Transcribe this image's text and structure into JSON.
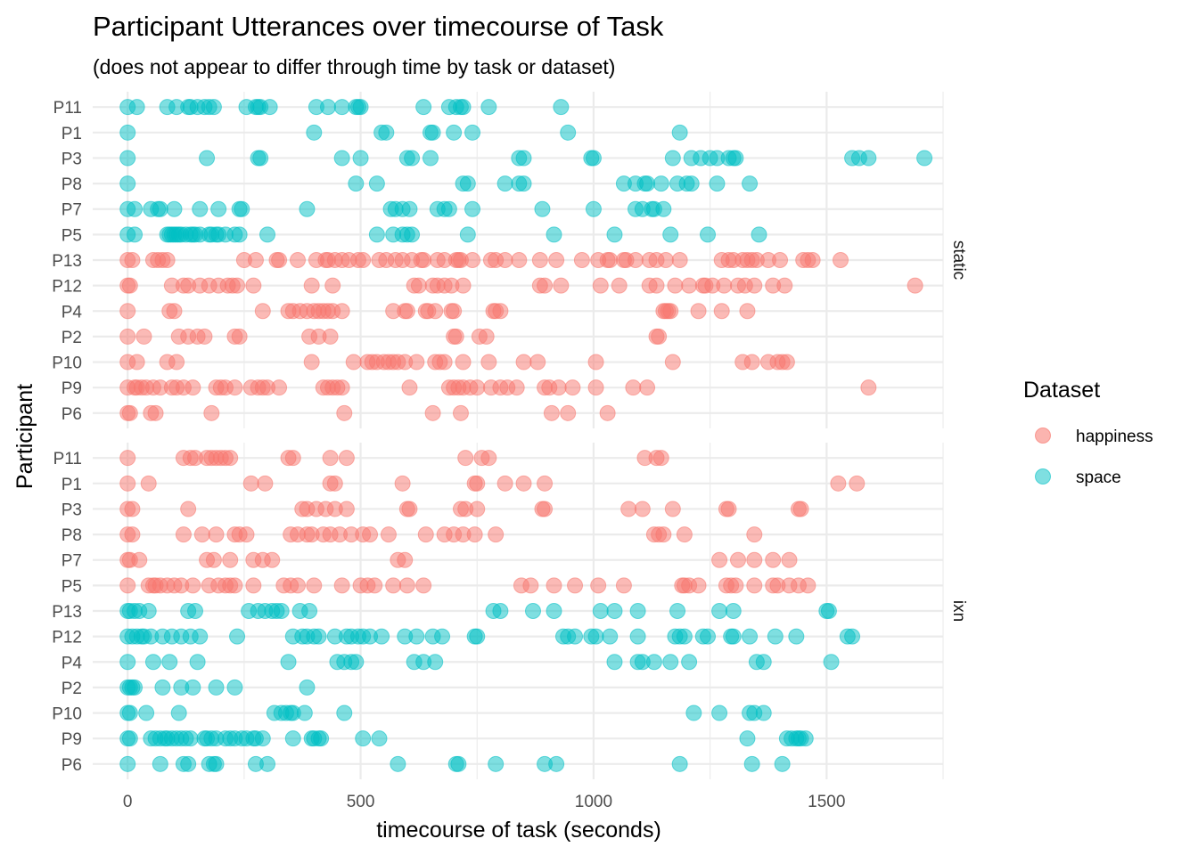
{
  "chart_data": {
    "type": "scatter",
    "title": "Participant Utterances over timecourse of Task",
    "subtitle": "(does not appear to differ through time by task or dataset)",
    "xlabel": "timecourse of task (seconds)",
    "ylabel": "Participant",
    "xlim": [
      -75,
      1750
    ],
    "x_ticks": [
      0,
      500,
      1000,
      1500
    ],
    "x_tick_labels": [
      "0",
      "500",
      "1000",
      "1500"
    ],
    "grid": true,
    "legend": {
      "title": "Dataset",
      "placement": "right",
      "entries": [
        {
          "name": "happiness",
          "color": "#F8766D"
        },
        {
          "name": "space",
          "color": "#00BFC4"
        }
      ]
    },
    "facets": [
      {
        "name": "static",
        "participants": [
          "P11",
          "P1",
          "P3",
          "P8",
          "P7",
          "P5",
          "P13",
          "P12",
          "P4",
          "P2",
          "P10",
          "P9",
          "P6"
        ],
        "rows": [
          {
            "participant": "P11",
            "dataset": "space",
            "x": [
              0,
              20,
              85,
              105,
              130,
              135,
              150,
              165,
              175,
              185,
              255,
              275,
              280,
              285,
              305,
              405,
              430,
              460,
              490,
              495,
              500,
              635,
              690,
              705,
              715,
              720,
              775,
              930
            ]
          },
          {
            "participant": "P1",
            "dataset": "space",
            "x": [
              0,
              400,
              545,
              555,
              650,
              655,
              700,
              740,
              945,
              1185
            ]
          },
          {
            "participant": "P3",
            "dataset": "space",
            "x": [
              0,
              170,
              280,
              285,
              460,
              500,
              600,
              610,
              650,
              840,
              850,
              995,
              1000,
              1170,
              1210,
              1230,
              1250,
              1265,
              1290,
              1300,
              1305,
              1555,
              1570,
              1590,
              1710
            ]
          },
          {
            "participant": "P8",
            "dataset": "space",
            "x": [
              0,
              490,
              535,
              720,
              730,
              810,
              840,
              850,
              1065,
              1090,
              1110,
              1115,
              1145,
              1180,
              1200,
              1210,
              1265,
              1335
            ]
          },
          {
            "participant": "P7",
            "dataset": "space",
            "x": [
              0,
              15,
              50,
              65,
              70,
              100,
              155,
              195,
              240,
              245,
              385,
              565,
              575,
              590,
              605,
              665,
              680,
              690,
              740,
              890,
              1000,
              1090,
              1105,
              1125,
              1130,
              1150
            ]
          },
          {
            "participant": "P5",
            "dataset": "space",
            "x": [
              0,
              15,
              85,
              90,
              95,
              100,
              105,
              110,
              115,
              125,
              135,
              140,
              145,
              155,
              175,
              180,
              190,
              195,
              210,
              230,
              240,
              300,
              535,
              570,
              590,
              600,
              610,
              730,
              915,
              1045,
              1165,
              1245,
              1355
            ]
          },
          {
            "participant": "P13",
            "dataset": "happiness",
            "x": [
              0,
              10,
              55,
              65,
              75,
              85,
              250,
              275,
              320,
              325,
              365,
              405,
              425,
              430,
              445,
              460,
              475,
              495,
              505,
              540,
              555,
              575,
              590,
              610,
              630,
              635,
              665,
              680,
              705,
              710,
              715,
              740,
              780,
              790,
              810,
              840,
              885,
              920,
              975,
              1010,
              1030,
              1035,
              1065,
              1070,
              1090,
              1120,
              1135,
              1155,
              1185,
              1275,
              1290,
              1300,
              1320,
              1330,
              1340,
              1350,
              1375,
              1400,
              1450,
              1460,
              1470,
              1530
            ]
          },
          {
            "participant": "P12",
            "dataset": "happiness",
            "x": [
              0,
              5,
              95,
              120,
              130,
              155,
              175,
              195,
              215,
              225,
              235,
              270,
              395,
              440,
              615,
              625,
              655,
              665,
              680,
              695,
              720,
              885,
              895,
              930,
              1015,
              1055,
              1120,
              1135,
              1175,
              1205,
              1235,
              1240,
              1255,
              1280,
              1310,
              1325,
              1345,
              1385,
              1410,
              1690
            ]
          },
          {
            "participant": "P4",
            "dataset": "happiness",
            "x": [
              0,
              90,
              100,
              290,
              345,
              355,
              370,
              385,
              400,
              410,
              420,
              430,
              440,
              460,
              570,
              595,
              600,
              640,
              645,
              660,
              695,
              700,
              785,
              790,
              800,
              1150,
              1155,
              1160,
              1165,
              1225,
              1275,
              1330
            ]
          },
          {
            "participant": "P2",
            "dataset": "happiness",
            "x": [
              0,
              35,
              110,
              130,
              150,
              165,
              230,
              240,
              390,
              410,
              435,
              700,
              705,
              755,
              770,
              1135,
              1140
            ]
          },
          {
            "participant": "P10",
            "dataset": "happiness",
            "x": [
              0,
              20,
              85,
              105,
              395,
              485,
              515,
              525,
              535,
              550,
              560,
              570,
              580,
              595,
              620,
              660,
              670,
              680,
              720,
              775,
              850,
              880,
              1005,
              1170,
              1320,
              1340,
              1375,
              1395,
              1405,
              1415
            ]
          },
          {
            "participant": "P9",
            "dataset": "happiness",
            "x": [
              0,
              15,
              20,
              30,
              40,
              55,
              70,
              95,
              105,
              120,
              140,
              190,
              200,
              210,
              230,
              265,
              280,
              290,
              300,
              325,
              420,
              430,
              440,
              450,
              460,
              605,
              690,
              700,
              710,
              720,
              735,
              750,
              780,
              800,
              815,
              835,
              895,
              905,
              925,
              955,
              1005,
              1085,
              1115,
              1590
            ]
          },
          {
            "participant": "P6",
            "dataset": "happiness",
            "x": [
              0,
              5,
              50,
              60,
              180,
              465,
              655,
              715,
              910,
              945,
              1030
            ]
          }
        ]
      },
      {
        "name": "ixn",
        "participants": [
          "P11",
          "P1",
          "P3",
          "P8",
          "P7",
          "P5",
          "P13",
          "P12",
          "P4",
          "P2",
          "P10",
          "P9",
          "P6"
        ],
        "rows": [
          {
            "participant": "P11",
            "dataset": "happiness",
            "x": [
              0,
              120,
              135,
              145,
              170,
              180,
              190,
              200,
              210,
              220,
              345,
              355,
              435,
              470,
              725,
              760,
              775,
              1110,
              1135,
              1145
            ]
          },
          {
            "participant": "P1",
            "dataset": "happiness",
            "x": [
              0,
              45,
              265,
              295,
              435,
              445,
              590,
              745,
              750,
              810,
              850,
              895,
              1525,
              1565
            ]
          },
          {
            "participant": "P3",
            "dataset": "happiness",
            "x": [
              0,
              10,
              130,
              375,
              385,
              405,
              425,
              445,
              470,
              600,
              605,
              715,
              725,
              750,
              890,
              895,
              1075,
              1105,
              1170,
              1285,
              1290,
              1440,
              1445
            ]
          },
          {
            "participant": "P8",
            "dataset": "happiness",
            "x": [
              0,
              10,
              120,
              160,
              190,
              230,
              240,
              255,
              350,
              365,
              385,
              395,
              420,
              435,
              455,
              480,
              505,
              520,
              560,
              640,
              680,
              700,
              720,
              745,
              790,
              1130,
              1140,
              1150,
              1195,
              1345
            ]
          },
          {
            "participant": "P7",
            "dataset": "happiness",
            "x": [
              0,
              5,
              25,
              170,
              185,
              220,
              270,
              290,
              310,
              580,
              595,
              1270,
              1310,
              1345,
              1385,
              1420
            ]
          },
          {
            "participant": "P5",
            "dataset": "happiness",
            "x": [
              0,
              45,
              55,
              60,
              70,
              85,
              100,
              115,
              140,
              175,
              195,
              210,
              220,
              230,
              270,
              335,
              350,
              365,
              400,
              460,
              500,
              515,
              530,
              570,
              600,
              635,
              845,
              865,
              915,
              960,
              1010,
              1065,
              1190,
              1195,
              1205,
              1225,
              1285,
              1295,
              1305,
              1345,
              1385,
              1395,
              1420,
              1440,
              1460
            ]
          },
          {
            "participant": "P13",
            "dataset": "space",
            "x": [
              0,
              5,
              15,
              25,
              45,
              130,
              145,
              260,
              280,
              295,
              310,
              320,
              330,
              370,
              390,
              785,
              800,
              870,
              915,
              1015,
              1045,
              1095,
              1180,
              1270,
              1300,
              1500,
              1505
            ]
          },
          {
            "participant": "P12",
            "dataset": "space",
            "x": [
              0,
              10,
              20,
              30,
              35,
              50,
              75,
              95,
              115,
              135,
              155,
              235,
              355,
              375,
              385,
              400,
              410,
              445,
              470,
              480,
              495,
              505,
              520,
              545,
              595,
              620,
              655,
              675,
              745,
              750,
              935,
              945,
              960,
              995,
              1005,
              1035,
              1095,
              1175,
              1185,
              1195,
              1235,
              1245,
              1295,
              1300,
              1335,
              1390,
              1435,
              1545,
              1555
            ]
          },
          {
            "participant": "P4",
            "dataset": "space",
            "x": [
              0,
              55,
              90,
              150,
              345,
              450,
              465,
              480,
              490,
              615,
              635,
              660,
              1045,
              1095,
              1105,
              1130,
              1165,
              1205,
              1350,
              1365,
              1510
            ]
          },
          {
            "participant": "P2",
            "dataset": "space",
            "x": [
              0,
              5,
              10,
              15,
              75,
              115,
              140,
              190,
              230,
              385
            ]
          },
          {
            "participant": "P10",
            "dataset": "space",
            "x": [
              0,
              5,
              40,
              110,
              315,
              330,
              340,
              350,
              355,
              380,
              465,
              1215,
              1270,
              1335,
              1345,
              1365
            ]
          },
          {
            "participant": "P9",
            "dataset": "space",
            "x": [
              0,
              5,
              50,
              60,
              70,
              80,
              85,
              95,
              105,
              115,
              125,
              135,
              165,
              170,
              180,
              190,
              210,
              220,
              230,
              245,
              255,
              270,
              275,
              290,
              355,
              395,
              400,
              410,
              415,
              505,
              540,
              1330,
              1415,
              1425,
              1435,
              1440,
              1445,
              1455
            ]
          },
          {
            "participant": "P6",
            "dataset": "space",
            "x": [
              0,
              70,
              120,
              130,
              175,
              185,
              190,
              275,
              300,
              580,
              705,
              710,
              790,
              895,
              920,
              1185,
              1340,
              1405
            ]
          }
        ]
      }
    ]
  }
}
